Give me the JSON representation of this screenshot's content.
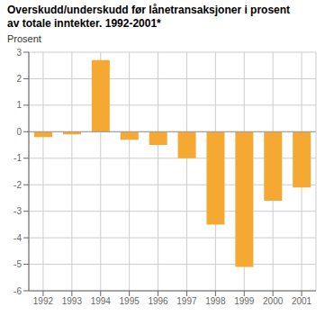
{
  "chart_data": {
    "type": "bar",
    "title": "Overskudd/underskudd før lånetransaksjoner i prosent\nav totale inntekter. 1992-2001*",
    "ylabel": "Prosent",
    "categories": [
      "1992",
      "1993",
      "1994",
      "1995",
      "1996",
      "1997",
      "1998",
      "1999",
      "2000",
      "2001"
    ],
    "values": [
      -0.2,
      -0.1,
      2.7,
      -0.3,
      -0.5,
      -1.0,
      -3.5,
      -5.1,
      -2.6,
      -2.1
    ],
    "color": "#F5A832",
    "ylim": [
      -6,
      3
    ],
    "yticks": [
      -6,
      -5,
      -4,
      -3,
      -2,
      -1,
      0,
      1,
      2,
      3
    ],
    "grid": true
  }
}
